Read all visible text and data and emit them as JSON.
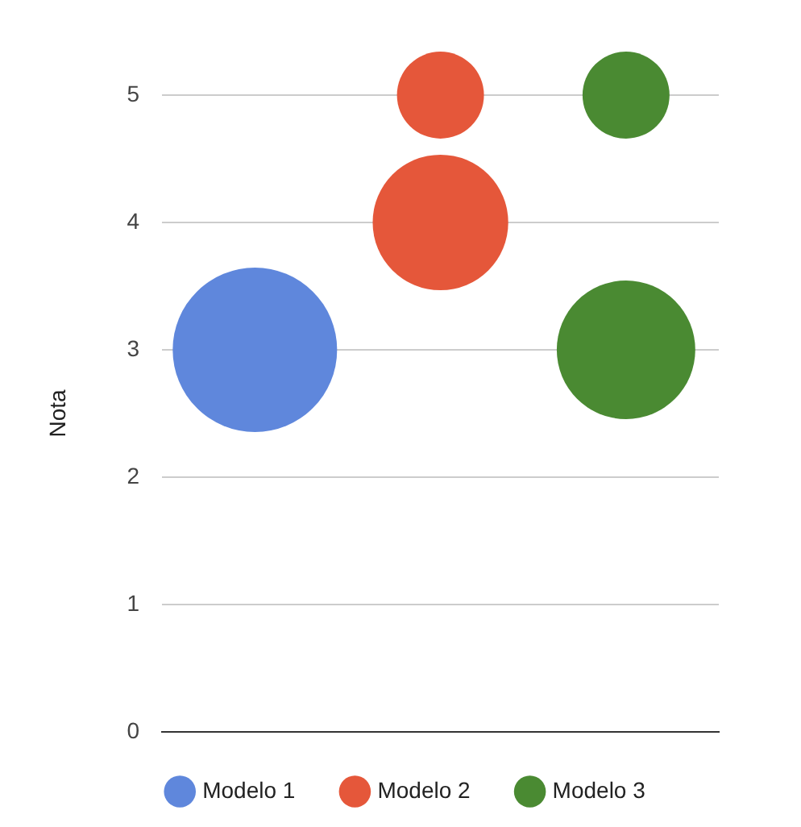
{
  "chart_data": {
    "type": "bubble",
    "ylabel": "Nota",
    "categories": [
      null,
      null,
      null
    ],
    "ylim": [
      0,
      5
    ],
    "yticks": [
      0,
      1,
      2,
      3,
      4,
      5
    ],
    "grid": "y",
    "legend": "bottom",
    "tick_labels": "y",
    "series": [
      {
        "name": "Modelo 1",
        "color": "#5f87dc",
        "values": [
          3,
          null,
          null
        ],
        "sizes": [
          1,
          null,
          null
        ]
      },
      {
        "name": "Modelo 2",
        "color": "#e5573a",
        "values": [
          null,
          5,
          null
        ],
        "sizes": [
          null,
          0.28,
          null
        ]
      },
      {
        "color": "#e5573a",
        "values": [
          null,
          4,
          null
        ],
        "sizes": [
          null,
          0.68,
          null
        ]
      },
      {
        "name": "Modelo 3",
        "color": "#4a8a32",
        "values": [
          null,
          null,
          5
        ],
        "sizes": [
          null,
          null,
          0.28
        ]
      },
      {
        "color": "#4a8a32",
        "values": [
          null,
          null,
          3
        ],
        "sizes": [
          null,
          null,
          0.71
        ]
      }
    ]
  }
}
